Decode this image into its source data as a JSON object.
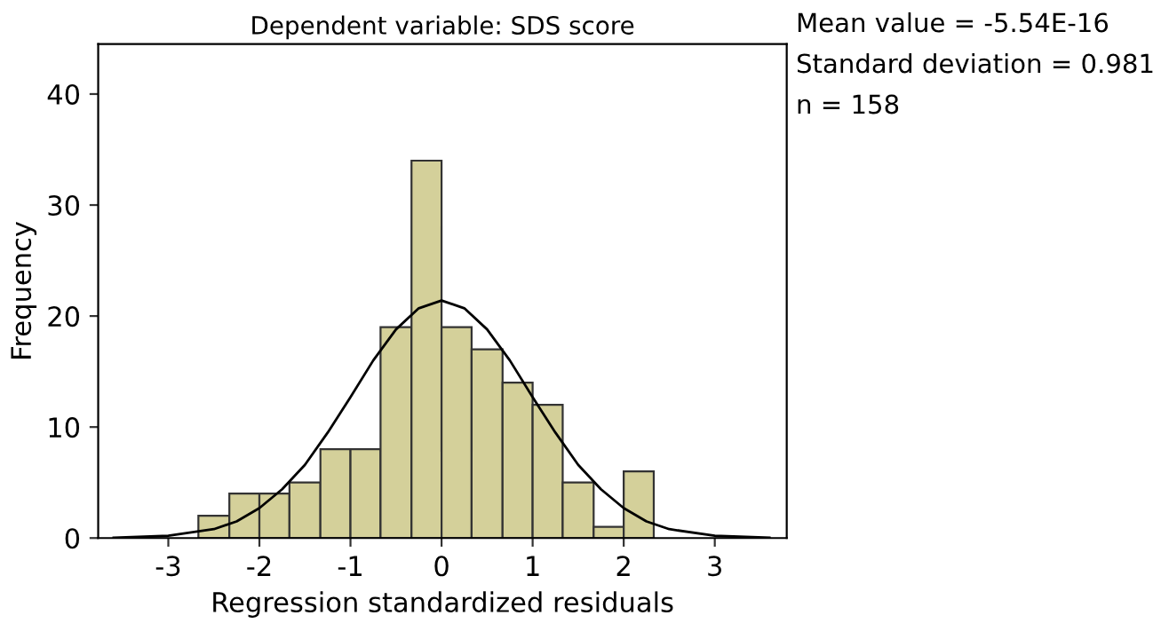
{
  "chart_data": {
    "type": "histogram",
    "title": "Dependent variable: SDS score",
    "xlabel": "Regression standardized residuals",
    "ylabel": "Frequency",
    "bins": [
      -2.67,
      -2.33,
      -2,
      -1.67,
      -1.33,
      -1,
      -0.67,
      -0.33,
      0,
      0.33,
      0.67,
      1,
      1.33,
      1.67,
      2,
      2.33
    ],
    "values": [
      2,
      4,
      4,
      5,
      8,
      8,
      19,
      34,
      19,
      17,
      14,
      12,
      5,
      1,
      6
    ],
    "color": "#d4d09a",
    "series": [
      {
        "type": "line",
        "color": "#000000",
        "x": [
          -3.6,
          -3,
          -2.5,
          -2.25,
          -2,
          -1.75,
          -1.5,
          -1.25,
          -1,
          -0.75,
          -0.5,
          -0.25,
          0,
          0.25,
          0.5,
          0.75,
          1,
          1.25,
          1.5,
          1.75,
          2,
          2.25,
          2.5,
          3,
          3.6
        ],
        "values": [
          0.03,
          0.2,
          0.8,
          1.5,
          2.7,
          4.4,
          6.6,
          9.5,
          12.7,
          16.0,
          18.8,
          20.7,
          21.4,
          20.7,
          18.8,
          16.0,
          12.7,
          9.5,
          6.6,
          4.4,
          2.7,
          1.5,
          0.8,
          0.2,
          0.03
        ]
      }
    ],
    "xlim": [
      -3.77,
      3.79
    ],
    "ylim": [
      0,
      44.5
    ],
    "xticks": [
      -3,
      -2,
      -1,
      0,
      1,
      2,
      3
    ],
    "yticks": [
      0,
      10,
      20,
      30,
      40
    ],
    "grid": false,
    "legend": false,
    "annotations": [
      "Mean value = -5.54E-16",
      "Standard deviation = 0.981",
      "n = 158"
    ]
  }
}
